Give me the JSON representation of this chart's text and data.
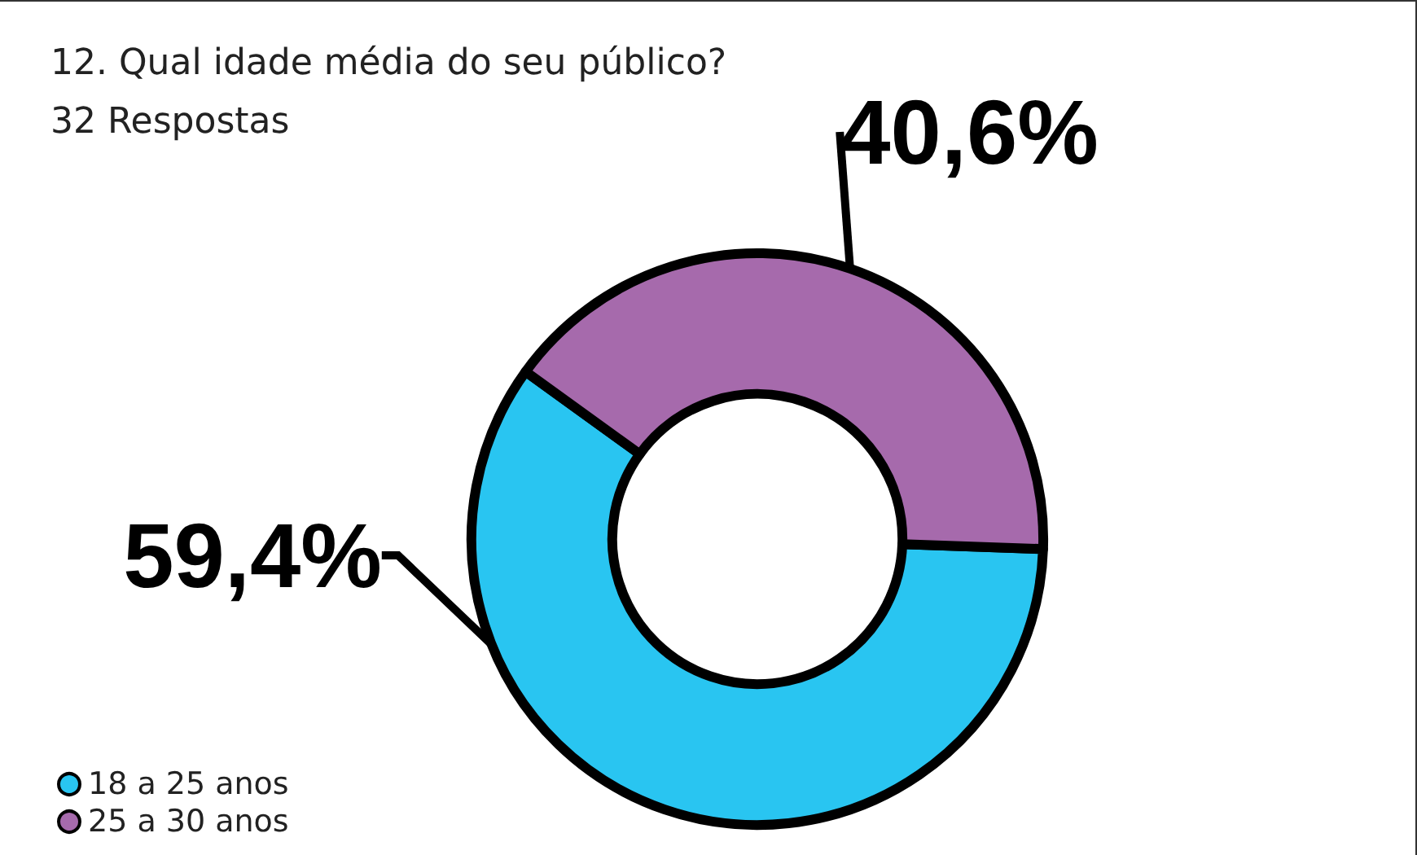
{
  "chart_data": {
    "type": "donut",
    "title": "12. Qual idade média do seu público?",
    "subtitle": "32 Respostas",
    "categories": [
      "18 a 25 anos",
      "25 a 30 anos"
    ],
    "values": [
      59.4,
      40.6
    ],
    "colors": [
      "#29c5f1",
      "#a66aac"
    ],
    "value_labels": [
      "59,4%",
      "40,6%"
    ],
    "legend": "bottom left"
  }
}
